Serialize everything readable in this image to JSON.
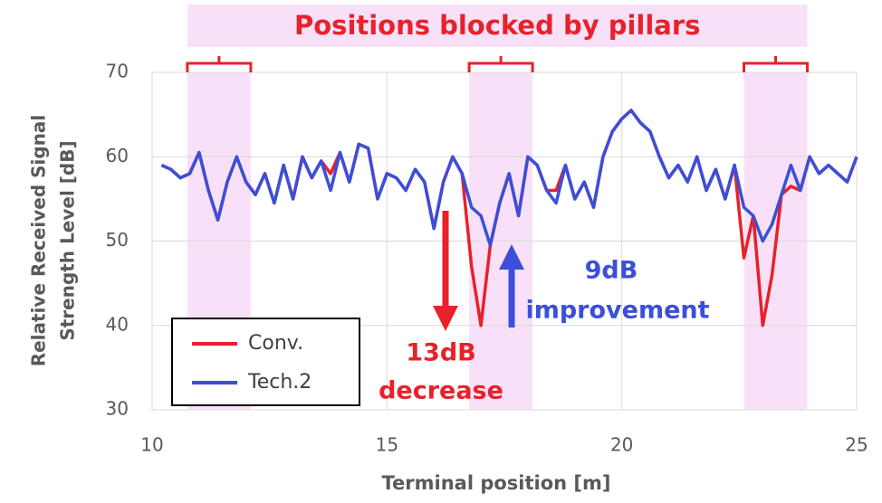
{
  "chart_data": {
    "type": "line",
    "title": "Positions blocked by pillars",
    "x_label": "Terminal position [m]",
    "y_label": [
      "Relative Received Signal",
      "Strength Level [dB]"
    ],
    "annotations": [
      {
        "lines": [
          "13dB",
          "decrease"
        ],
        "color": "#e8212a"
      },
      {
        "lines": [
          "9dB",
          "improvement"
        ],
        "color": "#3b4fd8"
      }
    ],
    "highlight_ranges": [
      [
        10.75,
        12.1
      ],
      [
        16.75,
        18.1
      ],
      [
        22.6,
        23.95
      ]
    ],
    "highlight_color": "#f8e1f8",
    "xlim": [
      10,
      25
    ],
    "xticks": [
      10,
      15,
      20,
      25
    ],
    "ylim": [
      30,
      70
    ],
    "yticks": [
      30,
      40,
      50,
      60,
      70
    ],
    "grid": true,
    "legend": "lower left",
    "x": [
      10.2,
      10.4,
      10.6,
      10.8,
      11.0,
      11.2,
      11.4,
      11.6,
      11.8,
      12.0,
      12.2,
      12.4,
      12.6,
      12.8,
      13.0,
      13.2,
      13.4,
      13.6,
      13.8,
      14.0,
      14.2,
      14.4,
      14.6,
      14.8,
      15.0,
      15.2,
      15.4,
      15.6,
      15.8,
      16.0,
      16.2,
      16.4,
      16.6,
      16.8,
      17.0,
      17.2,
      17.4,
      17.6,
      17.8,
      18.0,
      18.2,
      18.4,
      18.6,
      18.8,
      19.0,
      19.2,
      19.4,
      19.6,
      19.8,
      20.0,
      20.2,
      20.4,
      20.6,
      20.8,
      21.0,
      21.2,
      21.4,
      21.6,
      21.8,
      22.0,
      22.2,
      22.4,
      22.6,
      22.8,
      23.0,
      23.2,
      23.4,
      23.6,
      23.8,
      24.0,
      24.2,
      24.4,
      24.6,
      24.8,
      25.0
    ],
    "series": [
      {
        "name": "Conv.",
        "color": "#e8212a",
        "values": [
          59,
          58.5,
          57.5,
          58,
          60.5,
          56,
          52.5,
          57,
          60,
          57,
          55.5,
          58,
          54.5,
          59,
          55,
          60,
          57.5,
          59.5,
          58,
          60.5,
          57,
          61.5,
          61,
          55,
          58,
          57.5,
          56,
          58.5,
          57,
          51.5,
          57,
          60,
          58,
          47,
          40,
          49.5,
          54.5,
          58,
          53,
          60,
          59,
          56,
          56,
          59,
          55,
          57,
          54,
          60,
          63,
          64.5,
          65.5,
          64,
          63,
          60,
          57.5,
          59,
          57,
          60,
          56,
          58.5,
          55,
          59,
          48,
          53,
          40,
          46,
          55.5,
          56.5,
          56,
          60,
          58,
          59,
          58,
          57,
          60
        ]
      },
      {
        "name": "Tech.2",
        "color": "#3b4fd8",
        "values": [
          59,
          58.5,
          57.5,
          58,
          60.5,
          56,
          52.5,
          57,
          60,
          57,
          55.5,
          58,
          54.5,
          59,
          55,
          60,
          57.5,
          59.5,
          56,
          60.5,
          57,
          61.5,
          61,
          55,
          58,
          57.5,
          56,
          58.5,
          57,
          51.5,
          57,
          60,
          58,
          54,
          53,
          49.5,
          54.5,
          58,
          53,
          60,
          59,
          56,
          54.5,
          59,
          55,
          57,
          54,
          60,
          63,
          64.5,
          65.5,
          64,
          63,
          60,
          57.5,
          59,
          57,
          60,
          56,
          58.5,
          55,
          59,
          54,
          53,
          50,
          52,
          55.5,
          59,
          56,
          60,
          58,
          59,
          58,
          57,
          60
        ]
      }
    ]
  }
}
